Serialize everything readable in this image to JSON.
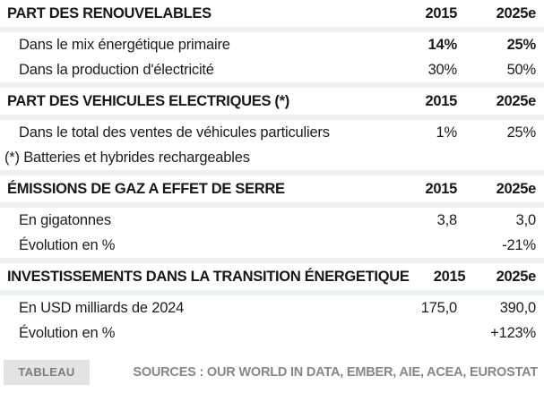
{
  "chart_data": {
    "type": "table",
    "columns": [
      "",
      "2015",
      "2025e"
    ],
    "sections": [
      {
        "title": "PART DES RENOUVELABLES",
        "rows": [
          [
            "Dans le mix énergétique primaire",
            "14%",
            "25%"
          ],
          [
            "Dans la production d'électricité",
            "30%",
            "50%"
          ]
        ]
      },
      {
        "title": "PART DES VEHICULES ELECTRIQUES (*)",
        "rows": [
          [
            "Dans le total des ventes de véhicules particuliers",
            "1%",
            "25%"
          ]
        ],
        "footnote": "(*) Batteries et hybrides rechargeables"
      },
      {
        "title": "ÉMISSIONS DE GAZ A EFFET DE SERRE",
        "rows": [
          [
            "En gigatonnes",
            "3,8",
            "3,0"
          ],
          [
            "Évolution en %",
            "",
            "-21%"
          ]
        ]
      },
      {
        "title": "INVESTISSEMENTS DANS LA TRANSITION ÉNERGETIQUE",
        "rows": [
          [
            "En USD milliards de 2024",
            "175,0",
            "390,0"
          ],
          [
            "Évolution en %",
            "",
            "+123%"
          ]
        ]
      }
    ],
    "title": "",
    "layout": {
      "grid": false,
      "value_columns_right_aligned": true
    }
  },
  "footer": {
    "badge_label": "TABLEAU",
    "sources_text": "SOURCES : OUR WORLD IN DATA, EMBER, AIE, ACEA, EUROSTAT"
  },
  "colors": {
    "text": "#1c1c1c",
    "separator_band": "#edf1ee",
    "badge_background": "#e3e3e3",
    "badge_text": "#7d7d7d",
    "sources_text": "#84878a",
    "background": "#ffffff"
  }
}
